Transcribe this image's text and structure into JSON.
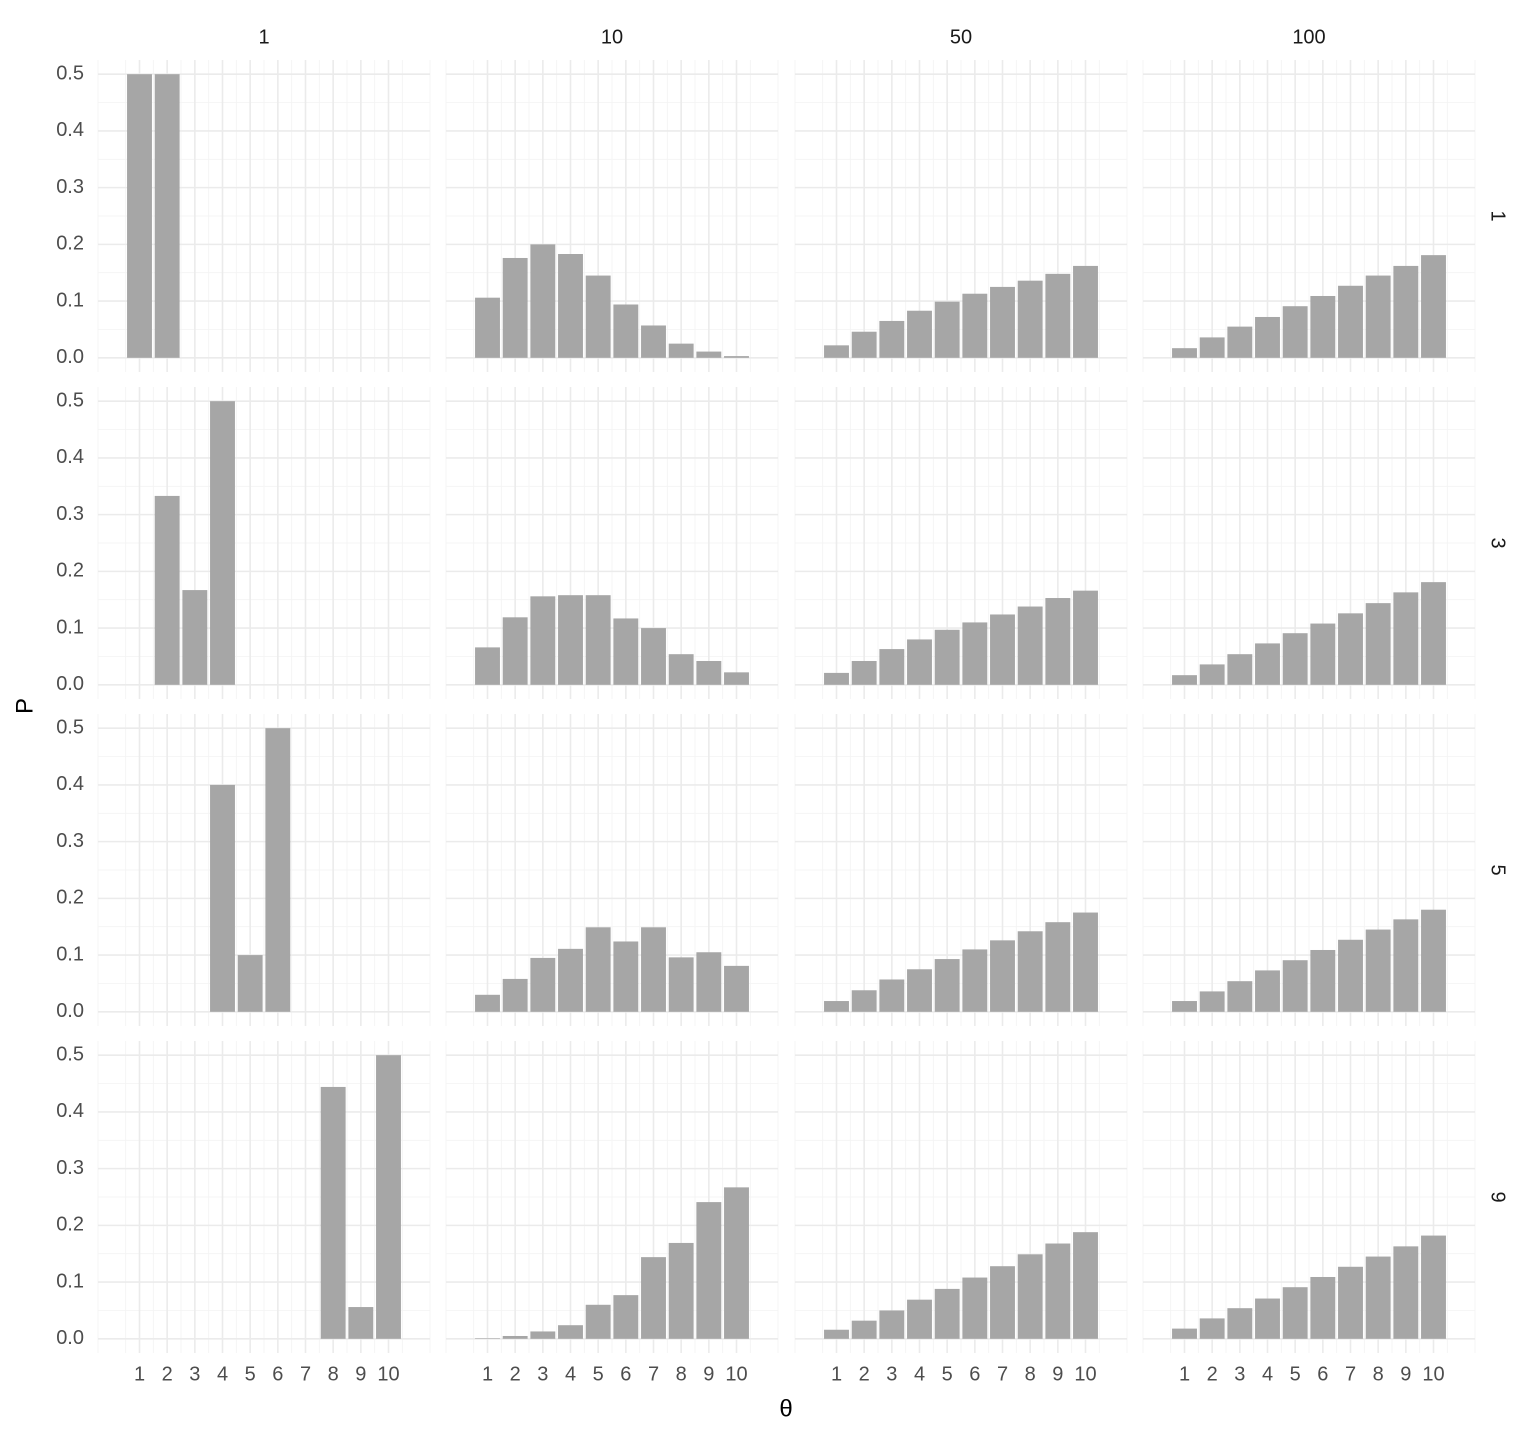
{
  "chart_data": {
    "type": "bar",
    "xlabel": "θ",
    "ylabel": "P",
    "col_labels": [
      "1",
      "10",
      "50",
      "100"
    ],
    "row_labels": [
      "1",
      "3",
      "5",
      "9"
    ],
    "categories": [
      1,
      2,
      3,
      4,
      5,
      6,
      7,
      8,
      9,
      10
    ],
    "color": "#a6a6a6",
    "ylim": [
      -0.025,
      0.525
    ],
    "yticks": [
      {
        "value": 0,
        "label": "0.0"
      },
      0.1,
      0.2,
      0.3,
      0.4,
      0.5
    ],
    "grid": true,
    "panels": [
      [
        [
          0.5,
          0.5,
          0,
          0,
          0,
          0,
          0,
          0,
          0,
          0
        ],
        [
          0.106,
          0.176,
          0.2,
          0.183,
          0.145,
          0.094,
          0.057,
          0.025,
          0.011,
          0.003
        ],
        [
          0.022,
          0.046,
          0.065,
          0.083,
          0.099,
          0.113,
          0.125,
          0.136,
          0.148,
          0.162
        ],
        [
          0.017,
          0.036,
          0.055,
          0.072,
          0.091,
          0.109,
          0.127,
          0.145,
          0.162,
          0.181
        ]
      ],
      [
        [
          0,
          0.333,
          0.167,
          0.5,
          0,
          0,
          0,
          0,
          0,
          0
        ],
        [
          0.066,
          0.119,
          0.156,
          0.158,
          0.158,
          0.117,
          0.1,
          0.054,
          0.042,
          0.022
        ],
        [
          0.021,
          0.042,
          0.063,
          0.08,
          0.097,
          0.11,
          0.124,
          0.138,
          0.153,
          0.166
        ],
        [
          0.017,
          0.036,
          0.054,
          0.073,
          0.091,
          0.108,
          0.126,
          0.144,
          0.163,
          0.181
        ]
      ],
      [
        [
          0,
          0,
          0,
          0.4,
          0.1,
          0.5,
          0,
          0,
          0,
          0
        ],
        [
          0.03,
          0.058,
          0.095,
          0.111,
          0.149,
          0.124,
          0.149,
          0.096,
          0.105,
          0.081
        ],
        [
          0.019,
          0.038,
          0.057,
          0.075,
          0.093,
          0.11,
          0.126,
          0.142,
          0.158,
          0.175
        ],
        [
          0.019,
          0.036,
          0.054,
          0.073,
          0.091,
          0.109,
          0.127,
          0.145,
          0.163,
          0.18
        ]
      ],
      [
        [
          0,
          0,
          0,
          0,
          0,
          0,
          0,
          0.444,
          0.056,
          0.5
        ],
        [
          0.001,
          0.005,
          0.013,
          0.024,
          0.06,
          0.077,
          0.144,
          0.169,
          0.241,
          0.267
        ],
        [
          0.016,
          0.032,
          0.05,
          0.069,
          0.088,
          0.108,
          0.128,
          0.149,
          0.168,
          0.188
        ],
        [
          0.018,
          0.036,
          0.054,
          0.071,
          0.091,
          0.109,
          0.127,
          0.145,
          0.163,
          0.182
        ]
      ]
    ]
  }
}
